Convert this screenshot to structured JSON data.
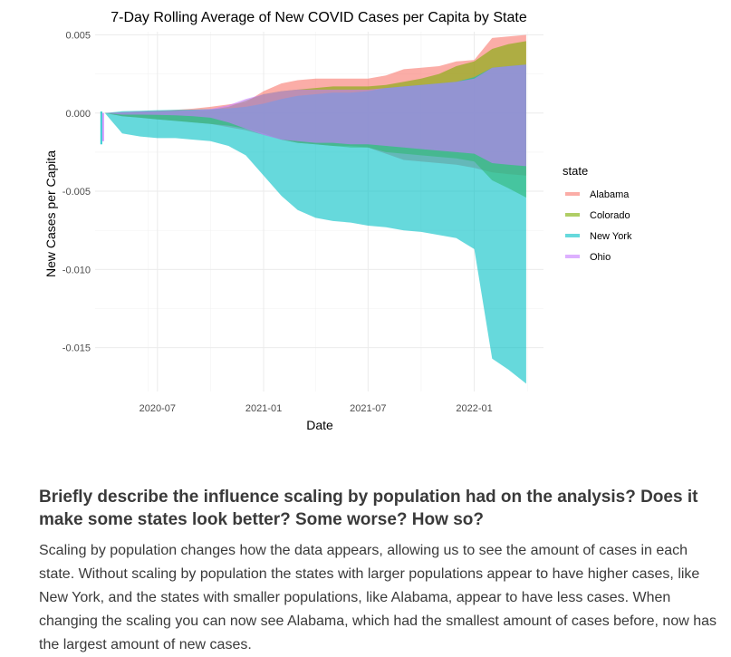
{
  "chart_data": {
    "type": "area",
    "title": "7-Day Rolling Average of New COVID Cases per Capita by State",
    "xlabel": "Date",
    "ylabel": "New Cases per Capita",
    "xlim": [
      "2020-03-15",
      "2022-05-01"
    ],
    "ylim": [
      -0.0178,
      0.0052
    ],
    "x_ticks": [
      "2020-07-01",
      "2021-01-01",
      "2021-07-01",
      "2022-01-01"
    ],
    "x_tick_labels": [
      "2020-07",
      "2021-01",
      "2021-07",
      "2022-01"
    ],
    "y_ticks": [
      0.005,
      0.0,
      -0.005,
      -0.01,
      -0.015
    ],
    "y_tick_labels": [
      "0.005",
      "0.000",
      "-0.005",
      "-0.010",
      "-0.015"
    ],
    "grid": true,
    "legend": {
      "title": "state",
      "position": "right"
    },
    "series": [
      {
        "name": "Alabama",
        "color": "#F8766D",
        "x": [
          "2020-04-01",
          "2020-05-01",
          "2020-06-01",
          "2020-07-01",
          "2020-08-01",
          "2020-09-01",
          "2020-10-01",
          "2020-11-01",
          "2020-12-01",
          "2021-01-01",
          "2021-02-01",
          "2021-03-01",
          "2021-04-01",
          "2021-05-01",
          "2021-06-01",
          "2021-07-01",
          "2021-08-01",
          "2021-09-01",
          "2021-10-01",
          "2021-11-01",
          "2021-12-01",
          "2022-01-01",
          "2022-02-01",
          "2022-03-01",
          "2022-04-01"
        ],
        "upper": [
          0.0,
          5e-05,
          0.0001,
          0.00015,
          0.0002,
          0.00028,
          0.0004,
          0.00055,
          0.0007,
          0.0014,
          0.0019,
          0.0021,
          0.0022,
          0.0022,
          0.0022,
          0.0022,
          0.0024,
          0.0028,
          0.0029,
          0.003,
          0.0033,
          0.0034,
          0.0048,
          0.0049,
          0.005
        ],
        "lower": [
          0.0,
          -0.0002,
          -0.0003,
          -0.0004,
          -0.0005,
          -0.0006,
          -0.0007,
          -0.0009,
          -0.0011,
          -0.0014,
          -0.0017,
          -0.0019,
          -0.002,
          -0.0021,
          -0.0021,
          -0.0022,
          -0.0026,
          -0.003,
          -0.0031,
          -0.0032,
          -0.0033,
          -0.0035,
          -0.0038,
          -0.0039,
          -0.004
        ]
      },
      {
        "name": "Colorado",
        "color": "#7CAE00",
        "x": [
          "2020-04-01",
          "2020-05-01",
          "2020-06-01",
          "2020-07-01",
          "2020-08-01",
          "2020-09-01",
          "2020-10-01",
          "2020-11-01",
          "2020-12-01",
          "2021-01-01",
          "2021-02-01",
          "2021-03-01",
          "2021-04-01",
          "2021-05-01",
          "2021-06-01",
          "2021-07-01",
          "2021-08-01",
          "2021-09-01",
          "2021-10-01",
          "2021-11-01",
          "2021-12-01",
          "2022-01-01",
          "2022-02-01",
          "2022-03-01",
          "2022-04-01"
        ],
        "upper": [
          0.0,
          5e-05,
          0.0001,
          0.00012,
          0.00014,
          0.00016,
          0.0002,
          0.0004,
          0.0008,
          0.0012,
          0.0014,
          0.0015,
          0.0016,
          0.0017,
          0.0017,
          0.0017,
          0.0018,
          0.002,
          0.0022,
          0.0025,
          0.003,
          0.0033,
          0.0041,
          0.0044,
          0.0046
        ],
        "lower": [
          0.0,
          -0.0002,
          -0.0003,
          -0.0004,
          -0.0005,
          -0.0006,
          -0.0007,
          -0.0008,
          -0.001,
          -0.0013,
          -0.0017,
          -0.0019,
          -0.002,
          -0.0021,
          -0.0022,
          -0.0022,
          -0.0025,
          -0.0026,
          -0.0027,
          -0.0028,
          -0.0029,
          -0.0031,
          -0.0043,
          -0.0048,
          -0.0054
        ]
      },
      {
        "name": "New York",
        "color": "#00BFC4",
        "x": [
          "2020-04-01",
          "2020-05-01",
          "2020-06-01",
          "2020-07-01",
          "2020-08-01",
          "2020-09-01",
          "2020-10-01",
          "2020-11-01",
          "2020-12-01",
          "2021-01-01",
          "2021-02-01",
          "2021-03-01",
          "2021-04-01",
          "2021-05-01",
          "2021-06-01",
          "2021-07-01",
          "2021-08-01",
          "2021-09-01",
          "2021-10-01",
          "2021-11-01",
          "2021-12-01",
          "2022-01-01",
          "2022-02-01",
          "2022-03-01",
          "2022-04-01"
        ],
        "upper": [
          0.0,
          0.00012,
          0.00015,
          0.00018,
          0.0002,
          0.00022,
          0.00025,
          0.0003,
          0.0004,
          0.0006,
          0.0009,
          0.0011,
          0.0012,
          0.0013,
          0.0013,
          0.0014,
          0.0016,
          0.0017,
          0.0018,
          0.0019,
          0.002,
          0.0023,
          0.0029,
          0.003,
          0.0031
        ],
        "lower": [
          0.0,
          -0.0013,
          -0.0015,
          -0.0016,
          -0.0016,
          -0.0017,
          -0.0018,
          -0.0021,
          -0.0027,
          -0.004,
          -0.0053,
          -0.0062,
          -0.0067,
          -0.0069,
          -0.007,
          -0.0072,
          -0.0073,
          -0.0075,
          -0.0076,
          -0.0078,
          -0.008,
          -0.0087,
          -0.0157,
          -0.0164,
          -0.0173
        ]
      },
      {
        "name": "Ohio",
        "color": "#C77CFF",
        "x": [
          "2020-04-01",
          "2020-05-01",
          "2020-06-01",
          "2020-07-01",
          "2020-08-01",
          "2020-09-01",
          "2020-10-01",
          "2020-11-01",
          "2020-12-01",
          "2021-01-01",
          "2021-02-01",
          "2021-03-01",
          "2021-04-01",
          "2021-05-01",
          "2021-06-01",
          "2021-07-01",
          "2021-08-01",
          "2021-09-01",
          "2021-10-01",
          "2021-11-01",
          "2021-12-01",
          "2022-01-01",
          "2022-02-01",
          "2022-03-01",
          "2022-04-01"
        ],
        "upper": [
          0.0,
          5e-05,
          0.0001,
          0.00012,
          0.00015,
          0.00018,
          0.00025,
          0.0005,
          0.0009,
          0.0012,
          0.0014,
          0.0015,
          0.0015,
          0.0015,
          0.0015,
          0.0015,
          0.0016,
          0.0017,
          0.0018,
          0.0019,
          0.002,
          0.0022,
          0.0029,
          0.003,
          0.0031
        ],
        "lower": [
          0.0,
          -0.0001,
          -0.0001,
          -0.00012,
          -0.00015,
          -0.0002,
          -0.0003,
          -0.0006,
          -0.001,
          -0.0014,
          -0.0017,
          -0.0018,
          -0.0019,
          -0.0019,
          -0.002,
          -0.002,
          -0.0021,
          -0.0022,
          -0.0023,
          -0.0024,
          -0.0025,
          -0.0026,
          -0.0032,
          -0.0033,
          -0.0034
        ]
      }
    ]
  },
  "text": {
    "question": "Briefly describe the influence scaling by population had on the analysis? Does it make some states look better? Some worse? How so?",
    "answer": "Scaling by population changes how the data appears, allowing us to see the amount of cases in each state. Without scaling by population the states with larger populations appear to have higher cases, like New York, and the states with smaller populations, like Alabama, appear to have less cases. When changing the scaling you can now see Alabama, which had the smallest amount of cases before, now has the largest amount of new cases."
  }
}
